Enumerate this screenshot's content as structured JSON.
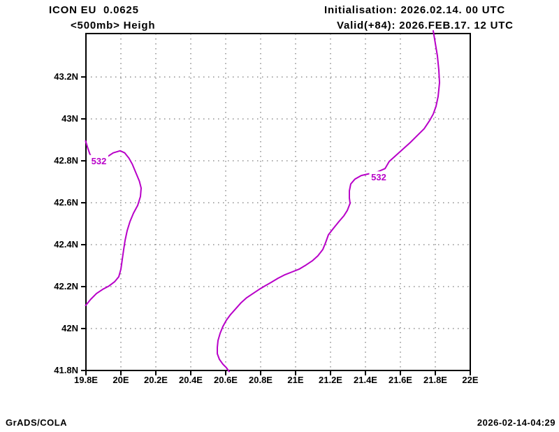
{
  "header": {
    "model": "ICON EU  0.0625",
    "level_param": "<500mb> Heigh",
    "init": "Initialisation: 2026.02.14. 00 UTC",
    "valid": "Valid(+84): 2026.FEB.17. 12 UTC"
  },
  "footer": {
    "credit": "GrADS/COLA",
    "timestamp": "2026-02-14-04:29"
  },
  "colors": {
    "contour": "#B800C8",
    "grid": "#8f8f8f",
    "axis": "#000000",
    "background": "#FFFFFF"
  },
  "chart_data": {
    "type": "line",
    "subtype": "contour-map",
    "title": "ICON EU 0.0625 <500mb> Heigh",
    "xlabel": "",
    "ylabel": "",
    "grid": true,
    "xlim": [
      19.8,
      22.0
    ],
    "ylim": [
      41.8,
      43.407
    ],
    "x_ticks": [
      {
        "v": 19.8,
        "label": "19.8E"
      },
      {
        "v": 20.0,
        "label": "20E"
      },
      {
        "v": 20.2,
        "label": "20.2E"
      },
      {
        "v": 20.4,
        "label": "20.4E"
      },
      {
        "v": 20.6,
        "label": "20.6E"
      },
      {
        "v": 20.8,
        "label": "20.8E"
      },
      {
        "v": 21.0,
        "label": "21E"
      },
      {
        "v": 21.2,
        "label": "21.2E"
      },
      {
        "v": 21.4,
        "label": "21.4E"
      },
      {
        "v": 21.6,
        "label": "21.6E"
      },
      {
        "v": 21.8,
        "label": "21.8E"
      },
      {
        "v": 22.0,
        "label": "22E"
      }
    ],
    "y_ticks": [
      {
        "v": 41.8,
        "label": "41.8N"
      },
      {
        "v": 42.0,
        "label": "42N"
      },
      {
        "v": 42.2,
        "label": "42.2N"
      },
      {
        "v": 42.4,
        "label": "42.4N"
      },
      {
        "v": 42.6,
        "label": "42.6N"
      },
      {
        "v": 42.8,
        "label": "42.8N"
      },
      {
        "v": 43.0,
        "label": "43N"
      },
      {
        "v": 43.2,
        "label": "43.2N"
      }
    ],
    "contours": [
      {
        "value": 532,
        "label": "532",
        "label_at": [
          19.874,
          42.801
        ],
        "points": [
          [
            19.798,
            42.895
          ],
          [
            19.81,
            42.862
          ],
          [
            19.822,
            42.833
          ],
          [
            19.836,
            42.812
          ],
          [
            19.87,
            42.801
          ],
          [
            19.912,
            42.814
          ],
          [
            19.956,
            42.838
          ],
          [
            19.996,
            42.848
          ],
          [
            20.022,
            42.838
          ],
          [
            20.046,
            42.813
          ],
          [
            20.066,
            42.783
          ],
          [
            20.086,
            42.743
          ],
          [
            20.106,
            42.703
          ],
          [
            20.116,
            42.67
          ],
          [
            20.112,
            42.63
          ],
          [
            20.096,
            42.587
          ],
          [
            20.072,
            42.55
          ],
          [
            20.052,
            42.51
          ],
          [
            20.036,
            42.467
          ],
          [
            20.024,
            42.42
          ],
          [
            20.016,
            42.377
          ],
          [
            20.008,
            42.33
          ],
          [
            20.0,
            42.283
          ],
          [
            19.988,
            42.247
          ],
          [
            19.964,
            42.223
          ],
          [
            19.932,
            42.203
          ],
          [
            19.896,
            42.187
          ],
          [
            19.86,
            42.167
          ],
          [
            19.828,
            42.14
          ],
          [
            19.798,
            42.11
          ]
        ]
      },
      {
        "value": 532,
        "label": "532",
        "label_at": [
          21.476,
          42.723
        ],
        "points": [
          [
            21.788,
            43.42
          ],
          [
            21.8,
            43.36
          ],
          [
            21.812,
            43.3
          ],
          [
            21.82,
            43.233
          ],
          [
            21.824,
            43.173
          ],
          [
            21.816,
            43.107
          ],
          [
            21.804,
            43.06
          ],
          [
            21.788,
            43.023
          ],
          [
            21.768,
            42.993
          ],
          [
            21.736,
            42.953
          ],
          [
            21.696,
            42.92
          ],
          [
            21.656,
            42.887
          ],
          [
            21.616,
            42.857
          ],
          [
            21.576,
            42.827
          ],
          [
            21.536,
            42.797
          ],
          [
            21.512,
            42.763
          ],
          [
            21.468,
            42.747
          ],
          [
            21.428,
            42.74
          ],
          [
            21.376,
            42.73
          ],
          [
            21.34,
            42.713
          ],
          [
            21.316,
            42.69
          ],
          [
            21.308,
            42.657
          ],
          [
            21.308,
            42.623
          ],
          [
            21.312,
            42.597
          ],
          [
            21.296,
            42.563
          ],
          [
            21.276,
            42.537
          ],
          [
            21.248,
            42.51
          ],
          [
            21.216,
            42.477
          ],
          [
            21.188,
            42.447
          ],
          [
            21.172,
            42.41
          ],
          [
            21.156,
            42.377
          ],
          [
            21.128,
            42.347
          ],
          [
            21.096,
            42.323
          ],
          [
            21.06,
            42.303
          ],
          [
            21.02,
            42.283
          ],
          [
            20.98,
            42.27
          ],
          [
            20.94,
            42.257
          ],
          [
            20.9,
            42.24
          ],
          [
            20.86,
            42.22
          ],
          [
            20.824,
            42.203
          ],
          [
            20.792,
            42.187
          ],
          [
            20.756,
            42.167
          ],
          [
            20.72,
            42.147
          ],
          [
            20.688,
            42.123
          ],
          [
            20.656,
            42.093
          ],
          [
            20.628,
            42.067
          ],
          [
            20.604,
            42.04
          ],
          [
            20.584,
            42.01
          ],
          [
            20.568,
            41.977
          ],
          [
            20.556,
            41.943
          ],
          [
            20.552,
            41.91
          ],
          [
            20.552,
            41.88
          ],
          [
            20.564,
            41.853
          ],
          [
            20.584,
            41.83
          ],
          [
            20.604,
            41.813
          ],
          [
            20.62,
            41.795
          ]
        ]
      }
    ]
  }
}
